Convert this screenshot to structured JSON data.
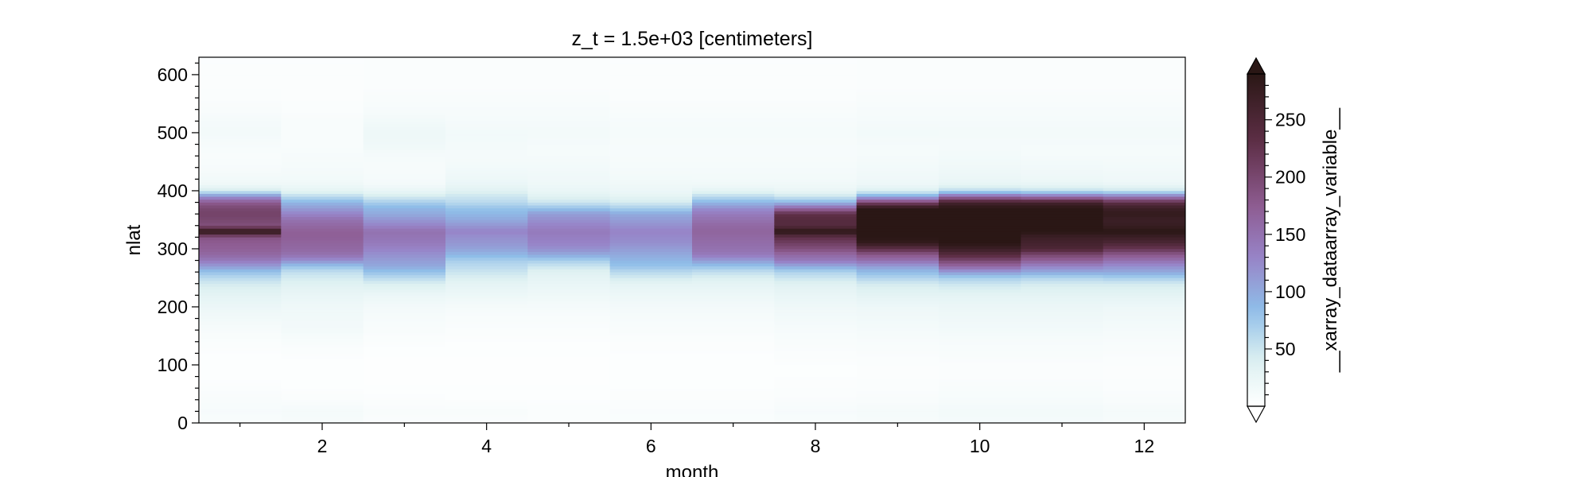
{
  "chart_data": {
    "type": "heatmap",
    "title": "z_t = 1.5e+03 [centimeters]",
    "xlabel": "month",
    "ylabel": "nlat",
    "colorbar_label": "__xarray_dataarray_variable__",
    "xlim": [
      0.5,
      12.5
    ],
    "ylim": [
      0,
      630
    ],
    "x_ticks": [
      2,
      4,
      6,
      8,
      10,
      12
    ],
    "y_ticks": [
      0,
      100,
      200,
      300,
      400,
      500,
      600
    ],
    "colorbar_ticks": [
      50,
      100,
      150,
      200,
      250
    ],
    "color_range": [
      0,
      290
    ],
    "colorbar_extend": "both",
    "colormap_stops": [
      {
        "v": 0,
        "color": "#ffffff"
      },
      {
        "v": 40,
        "color": "#dcf0f1"
      },
      {
        "v": 85,
        "color": "#8fbde8"
      },
      {
        "v": 130,
        "color": "#9783c7"
      },
      {
        "v": 175,
        "color": "#8e5c91"
      },
      {
        "v": 230,
        "color": "#5e2f47"
      },
      {
        "v": 290,
        "color": "#2a1715"
      }
    ],
    "colorbar_under": "#ffffff",
    "colorbar_over": "#2a1715",
    "months": [
      1,
      2,
      3,
      4,
      5,
      6,
      7,
      8,
      9,
      10,
      11,
      12
    ],
    "nlat_profile": [
      0,
      20,
      40,
      60,
      80,
      100,
      120,
      140,
      160,
      180,
      200,
      220,
      240,
      250,
      260,
      270,
      280,
      290,
      300,
      310,
      320,
      330,
      340,
      350,
      360,
      370,
      380,
      390,
      400,
      410,
      420,
      440,
      460,
      480,
      500,
      520,
      540,
      560,
      580,
      600,
      630
    ],
    "values": [
      [
        8,
        10,
        8,
        6,
        3,
        3,
        4,
        6,
        10,
        15,
        22,
        30,
        45,
        60,
        80,
        110,
        140,
        160,
        170,
        175,
        185,
        290,
        190,
        200,
        205,
        200,
        175,
        120,
        45,
        20,
        15,
        10,
        8,
        10,
        14,
        12,
        8,
        6,
        5,
        5,
        4
      ],
      [
        10,
        12,
        6,
        4,
        3,
        3,
        5,
        8,
        14,
        16,
        18,
        25,
        35,
        45,
        55,
        80,
        120,
        150,
        160,
        165,
        170,
        170,
        160,
        150,
        130,
        110,
        90,
        60,
        30,
        20,
        15,
        12,
        10,
        8,
        8,
        8,
        6,
        5,
        5,
        5,
        4
      ],
      [
        6,
        8,
        5,
        3,
        2,
        2,
        3,
        5,
        8,
        10,
        14,
        22,
        40,
        60,
        80,
        100,
        110,
        120,
        130,
        140,
        145,
        150,
        130,
        115,
        100,
        90,
        70,
        45,
        25,
        15,
        12,
        10,
        12,
        18,
        20,
        15,
        10,
        8,
        6,
        6,
        5
      ],
      [
        6,
        8,
        4,
        3,
        2,
        2,
        3,
        4,
        6,
        8,
        12,
        20,
        30,
        40,
        50,
        60,
        70,
        90,
        105,
        115,
        120,
        130,
        115,
        100,
        90,
        80,
        60,
        50,
        35,
        25,
        20,
        15,
        12,
        14,
        15,
        12,
        10,
        8,
        6,
        6,
        5
      ],
      [
        5,
        6,
        4,
        3,
        2,
        2,
        3,
        4,
        6,
        8,
        12,
        18,
        25,
        30,
        35,
        50,
        70,
        100,
        120,
        130,
        135,
        140,
        130,
        120,
        110,
        80,
        50,
        35,
        25,
        20,
        18,
        15,
        12,
        12,
        14,
        12,
        10,
        8,
        6,
        6,
        5
      ],
      [
        6,
        7,
        5,
        4,
        3,
        3,
        4,
        5,
        8,
        10,
        14,
        20,
        30,
        45,
        60,
        80,
        90,
        100,
        110,
        120,
        125,
        130,
        120,
        110,
        100,
        70,
        45,
        30,
        22,
        18,
        15,
        12,
        10,
        10,
        12,
        10,
        8,
        6,
        5,
        5,
        4
      ],
      [
        6,
        7,
        5,
        4,
        3,
        3,
        4,
        5,
        8,
        10,
        14,
        20,
        30,
        40,
        55,
        80,
        110,
        140,
        150,
        155,
        160,
        165,
        160,
        150,
        140,
        120,
        90,
        60,
        30,
        18,
        14,
        12,
        10,
        10,
        12,
        10,
        8,
        6,
        5,
        5,
        4
      ],
      [
        8,
        10,
        7,
        5,
        4,
        4,
        6,
        8,
        10,
        14,
        18,
        25,
        35,
        50,
        65,
        100,
        140,
        160,
        190,
        210,
        230,
        290,
        240,
        240,
        230,
        160,
        90,
        50,
        25,
        18,
        14,
        12,
        10,
        10,
        12,
        10,
        8,
        6,
        5,
        5,
        4
      ],
      [
        10,
        12,
        8,
        6,
        5,
        5,
        7,
        9,
        12,
        16,
        20,
        30,
        45,
        65,
        85,
        110,
        150,
        180,
        230,
        280,
        290,
        290,
        290,
        290,
        290,
        290,
        200,
        100,
        40,
        22,
        18,
        15,
        12,
        12,
        15,
        12,
        10,
        8,
        6,
        6,
        5
      ],
      [
        12,
        14,
        10,
        8,
        6,
        6,
        8,
        10,
        14,
        18,
        22,
        30,
        50,
        70,
        110,
        160,
        200,
        240,
        270,
        290,
        290,
        290,
        290,
        290,
        290,
        290,
        260,
        160,
        60,
        30,
        22,
        18,
        14,
        12,
        14,
        12,
        10,
        8,
        6,
        6,
        5
      ],
      [
        12,
        14,
        10,
        8,
        6,
        6,
        8,
        10,
        14,
        18,
        22,
        30,
        45,
        65,
        100,
        130,
        170,
        200,
        250,
        260,
        270,
        290,
        290,
        290,
        290,
        290,
        260,
        150,
        55,
        28,
        20,
        16,
        12,
        12,
        14,
        12,
        10,
        8,
        6,
        6,
        5
      ],
      [
        10,
        12,
        8,
        6,
        5,
        5,
        7,
        9,
        12,
        16,
        20,
        30,
        45,
        70,
        100,
        120,
        150,
        180,
        220,
        250,
        270,
        290,
        275,
        270,
        280,
        270,
        230,
        140,
        50,
        25,
        18,
        15,
        12,
        12,
        14,
        12,
        10,
        8,
        6,
        6,
        5
      ]
    ]
  }
}
